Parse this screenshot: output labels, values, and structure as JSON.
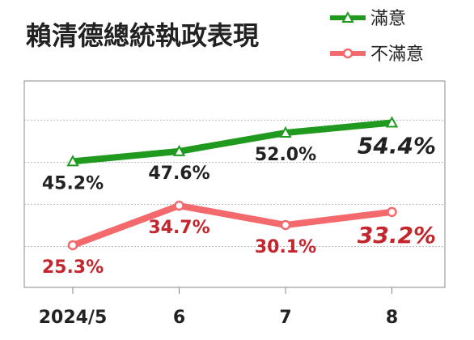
{
  "chart_data": {
    "type": "line",
    "title": "賴清德總統執政表現",
    "categories": [
      "2024/5",
      "6",
      "7",
      "8"
    ],
    "series": [
      {
        "name": "滿意",
        "color": "#1f9a1f",
        "label_color": "#222222",
        "marker": "triangle",
        "values": [
          45.2,
          47.6,
          52.0,
          54.4
        ],
        "value_labels": [
          "45.2%",
          "47.6%",
          "52.0%",
          "54.4%"
        ]
      },
      {
        "name": "不滿意",
        "color": "#f4696b",
        "label_color": "#c4262e",
        "marker": "circle",
        "values": [
          25.3,
          34.7,
          30.1,
          33.2
        ],
        "value_labels": [
          "25.3%",
          "34.7%",
          "30.1%",
          "33.2%"
        ]
      }
    ],
    "ylim": [
      15.3,
      64.3
    ],
    "yticks": [
      25,
      35,
      45,
      55
    ],
    "grid": true
  }
}
